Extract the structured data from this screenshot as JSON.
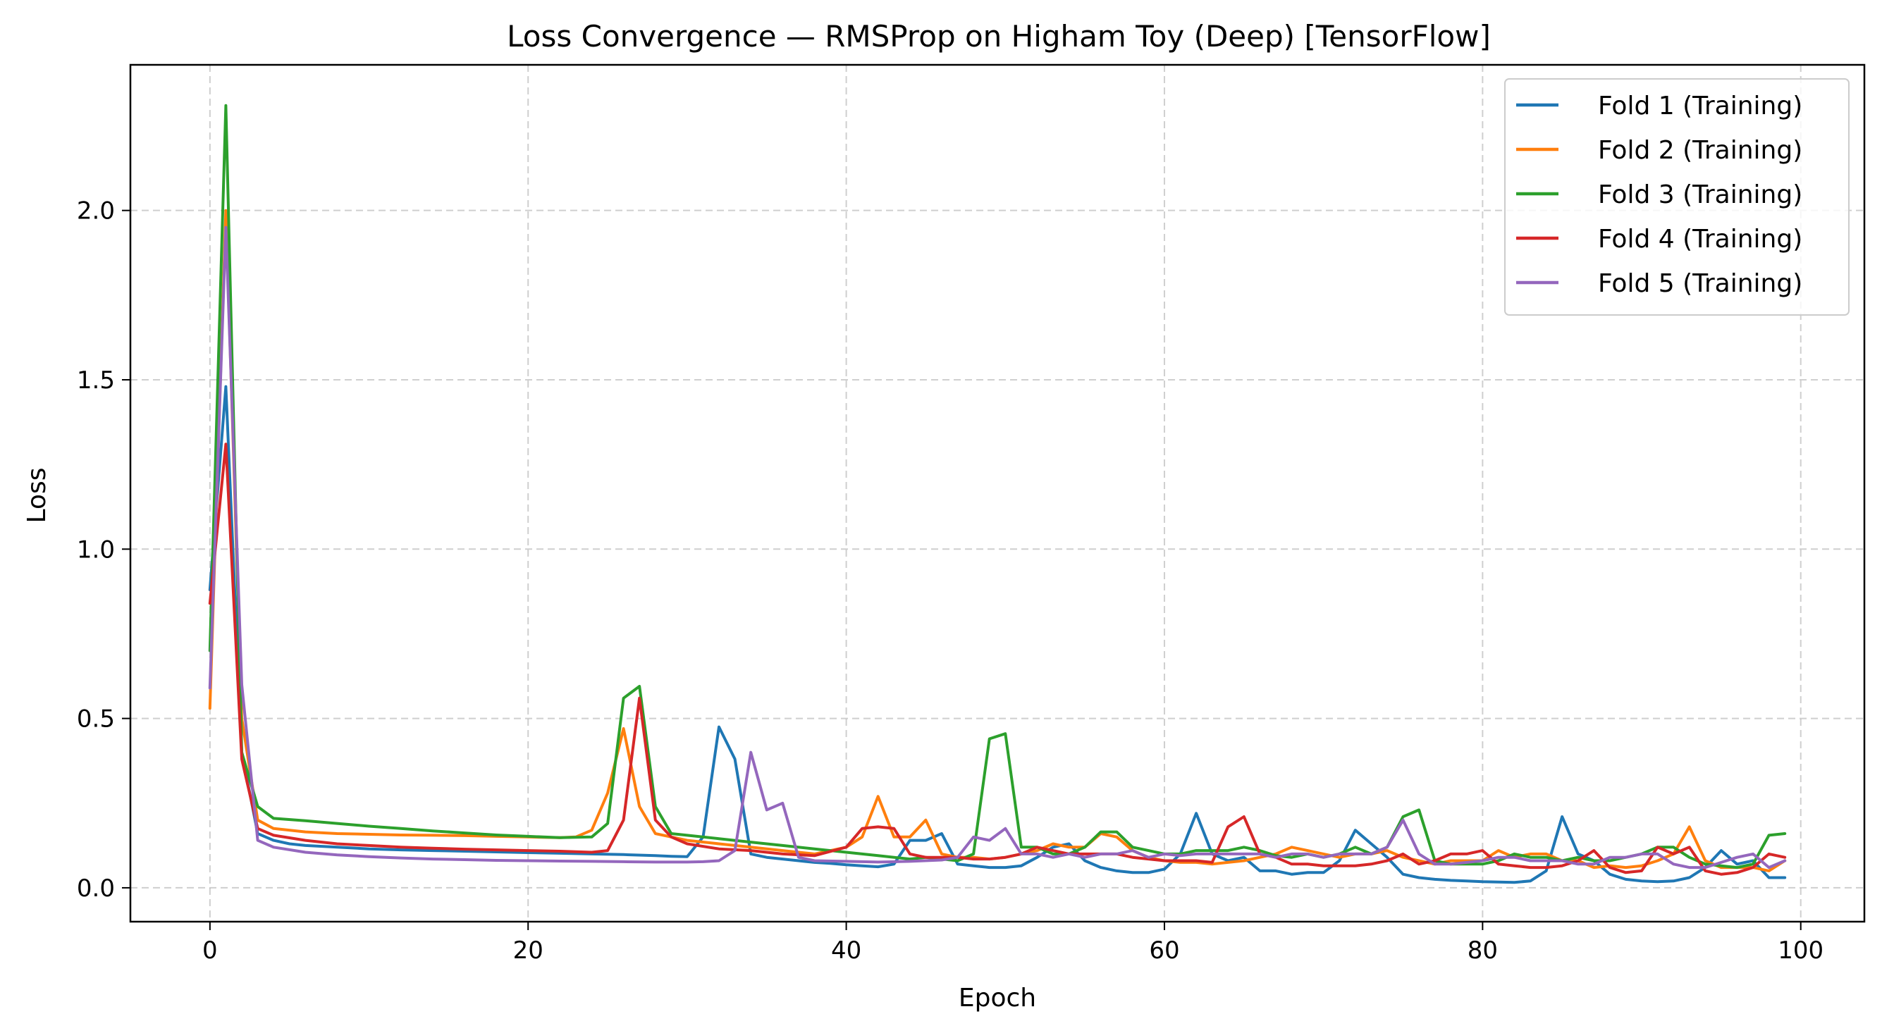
{
  "chart_data": {
    "type": "line",
    "title": "Loss Convergence — RMSProp on Higham Toy (Deep) [TensorFlow]",
    "xlabel": "Epoch",
    "ylabel": "Loss",
    "xlim": [
      -5,
      104
    ],
    "ylim": [
      -0.1,
      2.43
    ],
    "xticks": [
      0,
      20,
      40,
      60,
      80,
      100
    ],
    "xtick_labels": [
      "0",
      "20",
      "40",
      "60",
      "80",
      "100"
    ],
    "yticks": [
      0.0,
      0.5,
      1.0,
      1.5,
      2.0
    ],
    "ytick_labels": [
      "0.0",
      "0.5",
      "1.0",
      "1.5",
      "2.0"
    ],
    "grid": true,
    "legend_position": "top-right",
    "series": [
      {
        "name": "Fold 1 (Training)",
        "color": "#1f77b4",
        "x": [
          0,
          1,
          2,
          3,
          4,
          5,
          6,
          8,
          10,
          12,
          14,
          16,
          18,
          20,
          22,
          24,
          26,
          28,
          29,
          30,
          31,
          32,
          33,
          34,
          35,
          36,
          37,
          38,
          39,
          40,
          41,
          42,
          43,
          44,
          45,
          46,
          47,
          48,
          49,
          50,
          51,
          52,
          53,
          54,
          55,
          56,
          57,
          58,
          59,
          60,
          61,
          62,
          63,
          64,
          65,
          66,
          67,
          68,
          69,
          70,
          71,
          72,
          73,
          74,
          75,
          76,
          77,
          78,
          79,
          80,
          81,
          82,
          83,
          84,
          85,
          86,
          87,
          88,
          89,
          90,
          91,
          92,
          93,
          94,
          95,
          96,
          97,
          98,
          99
        ],
        "y": [
          0.88,
          1.48,
          0.4,
          0.16,
          0.14,
          0.13,
          0.125,
          0.12,
          0.115,
          0.112,
          0.11,
          0.108,
          0.106,
          0.104,
          0.102,
          0.1,
          0.098,
          0.095,
          0.093,
          0.092,
          0.15,
          0.475,
          0.38,
          0.1,
          0.09,
          0.085,
          0.08,
          0.075,
          0.072,
          0.068,
          0.065,
          0.062,
          0.07,
          0.14,
          0.14,
          0.16,
          0.07,
          0.065,
          0.06,
          0.06,
          0.065,
          0.09,
          0.12,
          0.13,
          0.08,
          0.06,
          0.05,
          0.045,
          0.045,
          0.055,
          0.1,
          0.22,
          0.1,
          0.08,
          0.09,
          0.05,
          0.05,
          0.04,
          0.045,
          0.045,
          0.08,
          0.17,
          0.13,
          0.09,
          0.04,
          0.03,
          0.025,
          0.022,
          0.02,
          0.018,
          0.017,
          0.016,
          0.02,
          0.05,
          0.21,
          0.1,
          0.08,
          0.04,
          0.025,
          0.02,
          0.018,
          0.02,
          0.03,
          0.06,
          0.11,
          0.07,
          0.08,
          0.03,
          0.03
        ]
      },
      {
        "name": "Fold 2 (Training)",
        "color": "#ff7f0e",
        "x": [
          0,
          1,
          2,
          3,
          4,
          6,
          8,
          10,
          12,
          14,
          16,
          18,
          20,
          22,
          23,
          24,
          25,
          26,
          27,
          28,
          29,
          30,
          32,
          34,
          36,
          38,
          40,
          41,
          42,
          43,
          44,
          45,
          46,
          47,
          48,
          49,
          50,
          51,
          52,
          53,
          54,
          55,
          56,
          57,
          58,
          59,
          60,
          61,
          62,
          63,
          64,
          65,
          66,
          67,
          68,
          69,
          70,
          71,
          72,
          73,
          74,
          75,
          76,
          77,
          78,
          79,
          80,
          81,
          82,
          83,
          84,
          85,
          86,
          87,
          88,
          89,
          90,
          91,
          92,
          93,
          94,
          95,
          96,
          97,
          98,
          99
        ],
        "y": [
          0.53,
          2.0,
          0.5,
          0.2,
          0.175,
          0.165,
          0.16,
          0.158,
          0.156,
          0.155,
          0.154,
          0.152,
          0.15,
          0.148,
          0.15,
          0.17,
          0.28,
          0.47,
          0.24,
          0.16,
          0.15,
          0.14,
          0.13,
          0.12,
          0.11,
          0.1,
          0.12,
          0.15,
          0.27,
          0.15,
          0.15,
          0.2,
          0.1,
          0.09,
          0.09,
          0.085,
          0.09,
          0.1,
          0.11,
          0.13,
          0.12,
          0.12,
          0.16,
          0.15,
          0.11,
          0.09,
          0.08,
          0.075,
          0.075,
          0.07,
          0.075,
          0.08,
          0.09,
          0.1,
          0.12,
          0.11,
          0.1,
          0.09,
          0.1,
          0.1,
          0.11,
          0.09,
          0.08,
          0.07,
          0.08,
          0.08,
          0.08,
          0.11,
          0.09,
          0.1,
          0.1,
          0.08,
          0.08,
          0.06,
          0.065,
          0.06,
          0.065,
          0.08,
          0.1,
          0.18,
          0.08,
          0.06,
          0.06,
          0.06,
          0.05,
          0.08
        ]
      },
      {
        "name": "Fold 3 (Training)",
        "color": "#2ca02c",
        "x": [
          0,
          1,
          2,
          3,
          4,
          6,
          8,
          10,
          12,
          14,
          16,
          18,
          20,
          22,
          24,
          25,
          26,
          27,
          28,
          29,
          30,
          32,
          34,
          36,
          38,
          40,
          42,
          44,
          45,
          46,
          47,
          48,
          49,
          50,
          51,
          52,
          53,
          54,
          55,
          56,
          57,
          58,
          59,
          60,
          61,
          62,
          63,
          64,
          65,
          66,
          67,
          68,
          69,
          70,
          71,
          72,
          73,
          74,
          75,
          76,
          77,
          78,
          79,
          80,
          81,
          82,
          83,
          84,
          85,
          86,
          87,
          88,
          89,
          90,
          91,
          92,
          93,
          94,
          95,
          96,
          97,
          98,
          99
        ],
        "y": [
          0.7,
          2.31,
          0.4,
          0.24,
          0.205,
          0.198,
          0.19,
          0.182,
          0.175,
          0.168,
          0.162,
          0.156,
          0.152,
          0.148,
          0.15,
          0.19,
          0.56,
          0.595,
          0.24,
          0.16,
          0.155,
          0.145,
          0.135,
          0.125,
          0.115,
          0.105,
          0.095,
          0.085,
          0.09,
          0.085,
          0.08,
          0.1,
          0.44,
          0.455,
          0.12,
          0.12,
          0.1,
          0.1,
          0.12,
          0.165,
          0.165,
          0.12,
          0.11,
          0.1,
          0.1,
          0.11,
          0.11,
          0.11,
          0.12,
          0.11,
          0.095,
          0.09,
          0.1,
          0.09,
          0.1,
          0.12,
          0.1,
          0.12,
          0.21,
          0.23,
          0.08,
          0.07,
          0.07,
          0.07,
          0.08,
          0.1,
          0.09,
          0.09,
          0.08,
          0.09,
          0.08,
          0.08,
          0.09,
          0.1,
          0.12,
          0.12,
          0.09,
          0.07,
          0.065,
          0.06,
          0.07,
          0.155,
          0.16
        ]
      },
      {
        "name": "Fold 4 (Training)",
        "color": "#d62728",
        "x": [
          0,
          1,
          2,
          3,
          4,
          6,
          8,
          10,
          12,
          14,
          16,
          18,
          20,
          22,
          24,
          25,
          26,
          27,
          28,
          29,
          30,
          32,
          34,
          36,
          38,
          40,
          41,
          42,
          43,
          44,
          45,
          46,
          47,
          48,
          49,
          50,
          51,
          52,
          53,
          54,
          55,
          56,
          57,
          58,
          59,
          60,
          61,
          62,
          63,
          64,
          65,
          66,
          67,
          68,
          69,
          70,
          71,
          72,
          73,
          74,
          75,
          76,
          77,
          78,
          79,
          80,
          81,
          82,
          83,
          84,
          85,
          86,
          87,
          88,
          89,
          90,
          91,
          92,
          93,
          94,
          95,
          96,
          97,
          98,
          99
        ],
        "y": [
          0.84,
          1.31,
          0.38,
          0.175,
          0.155,
          0.14,
          0.13,
          0.125,
          0.12,
          0.117,
          0.114,
          0.112,
          0.11,
          0.108,
          0.105,
          0.11,
          0.2,
          0.56,
          0.2,
          0.15,
          0.13,
          0.115,
          0.11,
          0.1,
          0.095,
          0.12,
          0.175,
          0.18,
          0.175,
          0.1,
          0.09,
          0.09,
          0.09,
          0.085,
          0.085,
          0.09,
          0.1,
          0.12,
          0.11,
          0.1,
          0.1,
          0.1,
          0.1,
          0.09,
          0.085,
          0.08,
          0.08,
          0.08,
          0.075,
          0.18,
          0.21,
          0.1,
          0.09,
          0.07,
          0.07,
          0.065,
          0.065,
          0.065,
          0.07,
          0.08,
          0.1,
          0.07,
          0.08,
          0.1,
          0.1,
          0.11,
          0.07,
          0.065,
          0.06,
          0.06,
          0.065,
          0.08,
          0.11,
          0.06,
          0.045,
          0.05,
          0.12,
          0.1,
          0.12,
          0.05,
          0.04,
          0.045,
          0.06,
          0.1,
          0.09
        ]
      },
      {
        "name": "Fold 5 (Training)",
        "color": "#9467bd",
        "x": [
          0,
          1,
          2,
          3,
          4,
          6,
          8,
          10,
          12,
          14,
          16,
          18,
          20,
          22,
          24,
          26,
          28,
          30,
          31,
          32,
          33,
          34,
          35,
          36,
          37,
          38,
          40,
          42,
          44,
          46,
          47,
          48,
          49,
          50,
          51,
          52,
          53,
          54,
          55,
          56,
          57,
          58,
          59,
          60,
          61,
          62,
          63,
          64,
          65,
          66,
          67,
          68,
          69,
          70,
          71,
          72,
          73,
          74,
          75,
          76,
          77,
          78,
          79,
          80,
          81,
          82,
          83,
          84,
          85,
          86,
          87,
          88,
          89,
          90,
          91,
          92,
          93,
          94,
          95,
          96,
          97,
          98,
          99
        ],
        "y": [
          0.59,
          1.95,
          0.6,
          0.14,
          0.12,
          0.105,
          0.097,
          0.092,
          0.088,
          0.085,
          0.083,
          0.081,
          0.08,
          0.079,
          0.078,
          0.077,
          0.076,
          0.076,
          0.077,
          0.08,
          0.11,
          0.4,
          0.23,
          0.25,
          0.09,
          0.08,
          0.078,
          0.076,
          0.078,
          0.082,
          0.09,
          0.15,
          0.14,
          0.175,
          0.1,
          0.1,
          0.09,
          0.1,
          0.09,
          0.1,
          0.1,
          0.11,
          0.09,
          0.1,
          0.095,
          0.1,
          0.1,
          0.1,
          0.1,
          0.1,
          0.09,
          0.1,
          0.1,
          0.09,
          0.1,
          0.1,
          0.1,
          0.12,
          0.2,
          0.1,
          0.07,
          0.07,
          0.075,
          0.08,
          0.09,
          0.09,
          0.08,
          0.08,
          0.08,
          0.07,
          0.07,
          0.09,
          0.09,
          0.1,
          0.1,
          0.07,
          0.06,
          0.06,
          0.075,
          0.09,
          0.1,
          0.06,
          0.08
        ]
      }
    ]
  }
}
